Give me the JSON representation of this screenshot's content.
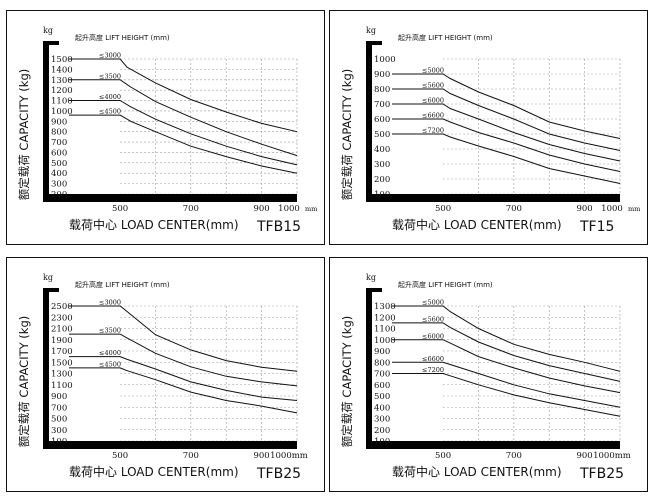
{
  "chart_data": [
    {
      "type": "line",
      "model": "TFB15",
      "unit": "kg",
      "title": "起升高度 LIFT HEIGHT (mm)",
      "ylabel": "额定载荷 CAPACITY (kg)",
      "xlabel": "载荷中心 LOAD CENTER(mm)",
      "y_ticks": [
        200,
        300,
        400,
        500,
        600,
        700,
        800,
        900,
        1000,
        1100,
        1200,
        1300,
        1400,
        1500
      ],
      "ylim": [
        200,
        1500
      ],
      "x_ticks": [
        500,
        700,
        900,
        1000
      ],
      "x_tick_labels": [
        "500",
        "700",
        "900",
        "1000"
      ],
      "x_unit": "mm",
      "xlim": [
        350,
        1000
      ],
      "series": [
        {
          "name": "≤3000",
          "x": [
            500,
            520,
            600,
            700,
            800,
            900,
            1000
          ],
          "values": [
            1500,
            1420,
            1270,
            1110,
            990,
            880,
            800
          ]
        },
        {
          "name": "≤3500",
          "x": [
            500,
            530,
            600,
            700,
            800,
            900,
            1000
          ],
          "values": [
            1300,
            1230,
            1090,
            940,
            800,
            680,
            570
          ]
        },
        {
          "name": "≤4000",
          "x": [
            500,
            530,
            600,
            700,
            800,
            900,
            1000
          ],
          "values": [
            1100,
            1040,
            920,
            780,
            660,
            560,
            480
          ]
        },
        {
          "name": "≤4500",
          "x": [
            500,
            530,
            600,
            700,
            800,
            900,
            1000
          ],
          "values": [
            960,
            900,
            800,
            660,
            560,
            470,
            400
          ]
        }
      ]
    },
    {
      "type": "line",
      "model": "TF15",
      "unit": "kg",
      "title": "起升高度 LIFT HEIGHT (mm)",
      "ylabel": "额定载荷 CAPACITY (kg)",
      "xlabel": "载荷中心 LOAD CENTER(mm)",
      "y_ticks": [
        100,
        200,
        300,
        400,
        500,
        600,
        700,
        800,
        900,
        1000
      ],
      "ylim": [
        0,
        1000
      ],
      "x_ticks": [
        500,
        700,
        900,
        1000
      ],
      "x_tick_labels": [
        "500",
        "700",
        "900",
        "1000"
      ],
      "x_unit": "mm",
      "xlim": [
        350,
        1000
      ],
      "series": [
        {
          "name": "≤5000",
          "x": [
            500,
            520,
            600,
            700,
            800,
            900,
            1000
          ],
          "values": [
            900,
            870,
            780,
            690,
            580,
            520,
            470
          ]
        },
        {
          "name": "≤5600",
          "x": [
            500,
            520,
            600,
            700,
            800,
            900,
            1000
          ],
          "values": [
            800,
            770,
            690,
            600,
            500,
            440,
            390
          ]
        },
        {
          "name": "≤6000",
          "x": [
            500,
            520,
            600,
            700,
            800,
            900,
            1000
          ],
          "values": [
            700,
            670,
            600,
            510,
            430,
            370,
            320
          ]
        },
        {
          "name": "≤6600",
          "x": [
            500,
            520,
            600,
            700,
            800,
            900,
            1000
          ],
          "values": [
            600,
            580,
            510,
            440,
            360,
            300,
            250
          ]
        },
        {
          "name": "≤7200",
          "x": [
            500,
            520,
            600,
            700,
            800,
            900,
            1000
          ],
          "values": [
            500,
            480,
            420,
            350,
            270,
            220,
            170
          ]
        }
      ]
    },
    {
      "type": "line",
      "model": "TFB25",
      "unit": "kg",
      "title": "起升高度 LIFT HEIGHT (mm)",
      "ylabel": "额定载荷 CAPACITY (kg)",
      "xlabel": "载荷中心 LOAD CENTER(mm)",
      "y_ticks": [
        100,
        300,
        500,
        700,
        900,
        1100,
        1300,
        1500,
        1700,
        1900,
        2100,
        2300,
        2500
      ],
      "ylim": [
        0,
        2500
      ],
      "x_ticks": [
        500,
        700,
        900,
        1000
      ],
      "x_tick_labels": [
        "500",
        "700",
        "900",
        "1000mm"
      ],
      "x_unit": "",
      "xlim": [
        350,
        1000
      ],
      "series": [
        {
          "name": "≤3000",
          "x": [
            500,
            520,
            600,
            700,
            800,
            900,
            1000
          ],
          "values": [
            2500,
            2400,
            1990,
            1720,
            1530,
            1410,
            1340
          ]
        },
        {
          "name": "≤3500",
          "x": [
            500,
            520,
            600,
            700,
            800,
            900,
            1000
          ],
          "values": [
            2000,
            1930,
            1660,
            1420,
            1250,
            1150,
            1080
          ]
        },
        {
          "name": "≤4000",
          "x": [
            500,
            520,
            600,
            700,
            800,
            900,
            1000
          ],
          "values": [
            1600,
            1550,
            1380,
            1150,
            1000,
            880,
            820
          ]
        },
        {
          "name": "≤4500",
          "x": [
            500,
            520,
            600,
            700,
            800,
            900,
            1000
          ],
          "values": [
            1400,
            1350,
            1190,
            970,
            820,
            720,
            600
          ]
        }
      ]
    },
    {
      "type": "line",
      "model": "TFB25",
      "unit": "kg",
      "title": "起升高度 LIFT HEIGHT (mm)",
      "ylabel": "额定载荷 CAPACITY (kg)",
      "xlabel": "载荷中心 LOAD CENTER(mm)",
      "y_ticks": [
        100,
        200,
        300,
        400,
        500,
        600,
        700,
        800,
        900,
        1000,
        1100,
        1200,
        1300
      ],
      "ylim": [
        0,
        1300
      ],
      "x_ticks": [
        500,
        700,
        900,
        1000
      ],
      "x_tick_labels": [
        "500",
        "700",
        "900",
        "1000mm"
      ],
      "x_unit": "",
      "xlim": [
        350,
        1000
      ],
      "series": [
        {
          "name": "≤5000",
          "x": [
            500,
            520,
            600,
            700,
            800,
            900,
            1000
          ],
          "values": [
            1300,
            1250,
            1100,
            960,
            870,
            800,
            720
          ]
        },
        {
          "name": "≤5600",
          "x": [
            500,
            520,
            600,
            700,
            800,
            900,
            1000
          ],
          "values": [
            1150,
            1110,
            980,
            860,
            770,
            700,
            630
          ]
        },
        {
          "name": "≤6000",
          "x": [
            500,
            520,
            600,
            700,
            800,
            900,
            1000
          ],
          "values": [
            1000,
            970,
            850,
            750,
            660,
            590,
            530
          ]
        },
        {
          "name": "≤6600",
          "x": [
            500,
            520,
            600,
            700,
            800,
            900,
            1000
          ],
          "values": [
            800,
            780,
            700,
            600,
            520,
            460,
            400
          ]
        },
        {
          "name": "≤7200",
          "x": [
            500,
            520,
            600,
            700,
            800,
            900,
            1000
          ],
          "values": [
            700,
            680,
            600,
            510,
            440,
            380,
            320
          ]
        }
      ]
    }
  ]
}
